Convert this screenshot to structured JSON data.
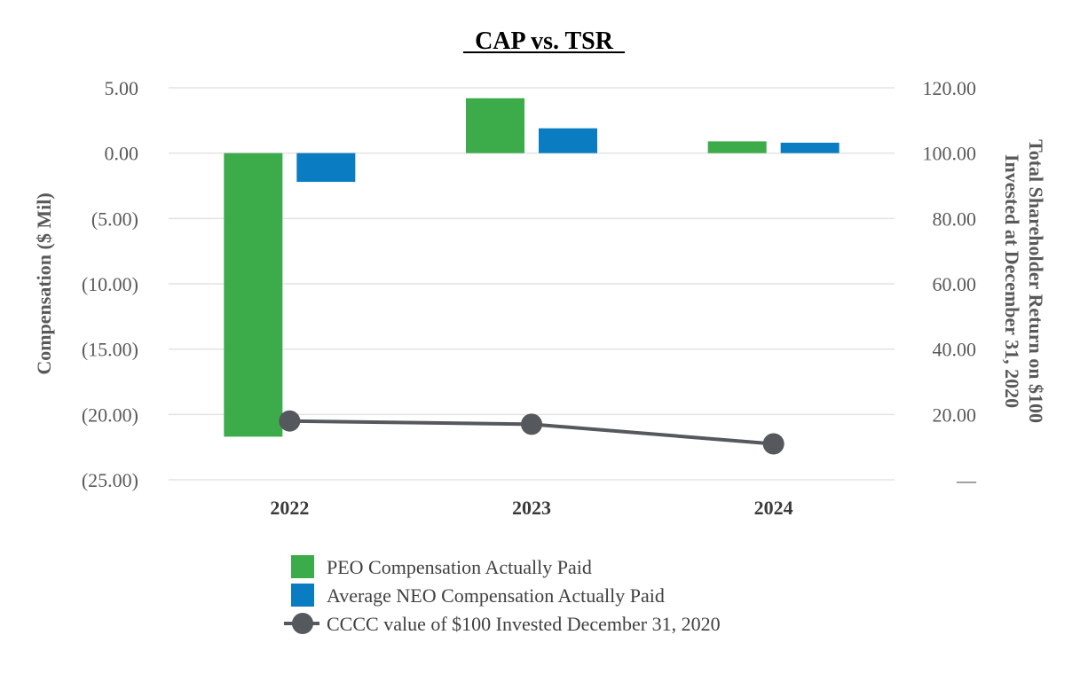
{
  "chart_data": {
    "type": "bar",
    "title": "CAP vs. TSR",
    "categories": [
      "2022",
      "2023",
      "2024"
    ],
    "series": [
      {
        "name": "PEO Compensation Actually Paid",
        "type": "bar",
        "axis": "left",
        "color": "#3cab4a",
        "values": [
          -21.7,
          4.2,
          0.9
        ]
      },
      {
        "name": "Average NEO Compensation Actually Paid",
        "type": "bar",
        "axis": "left",
        "color": "#0a7cc1",
        "values": [
          -2.2,
          1.9,
          0.8
        ]
      },
      {
        "name": "CCCC value of $100 Invested December 31, 2020",
        "type": "line",
        "axis": "right",
        "color": "#55585c",
        "values": [
          18.0,
          17.0,
          11.0
        ]
      }
    ],
    "ylabel": "Compensation ($ Mil)",
    "y2label_lines": [
      "Total Shareholder Return on $100",
      "Invested at December 31, 2020"
    ],
    "ylim": [
      -25,
      5
    ],
    "y2lim": [
      0,
      120
    ],
    "yticks": [
      5,
      0,
      -5,
      -10,
      -15,
      -20,
      -25
    ],
    "ytick_labels": [
      "5.00",
      "0.00",
      "(5.00)",
      "(10.00)",
      "(15.00)",
      "(20.00)",
      "(25.00)"
    ],
    "y2ticks": [
      120,
      100,
      80,
      60,
      40,
      20,
      0
    ],
    "y2tick_labels": [
      "120.00",
      "100.00",
      "80.00",
      "60.00",
      "40.00",
      "20.00",
      "—"
    ],
    "grid": true,
    "legend_position": "bottom"
  }
}
